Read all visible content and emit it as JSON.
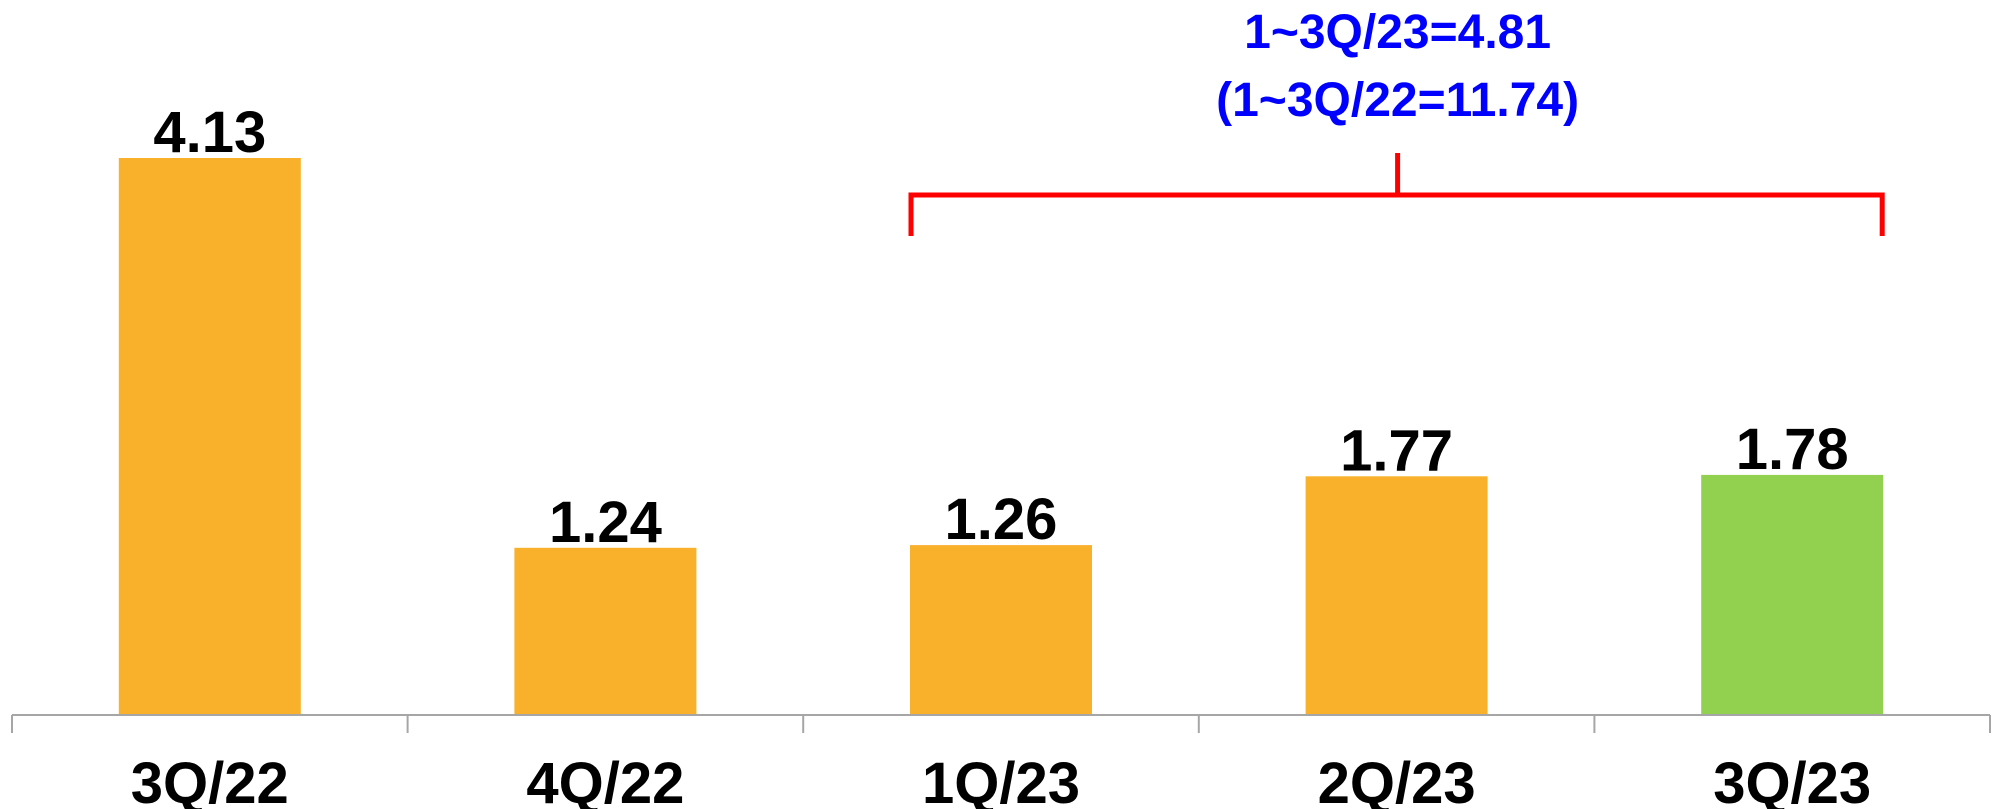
{
  "chart_data": {
    "type": "bar",
    "categories": [
      "3Q/22",
      "4Q/22",
      "1Q/23",
      "2Q/23",
      "3Q/23"
    ],
    "values": [
      4.13,
      1.24,
      1.26,
      1.77,
      1.78
    ],
    "value_labels": [
      "4.13",
      "1.24",
      "1.26",
      "1.77",
      "1.78"
    ],
    "bar_colors": [
      "#F9B12B",
      "#F9B12B",
      "#F9B12B",
      "#F9B12B",
      "#92D050"
    ],
    "title": "",
    "xlabel": "",
    "ylabel": "",
    "ylim": [
      0,
      4.13
    ],
    "grid": false,
    "annotation": {
      "line1": "1~3Q/23=4.81",
      "line2": "(1~3Q/22=11.74)",
      "text_color": "#0000FF",
      "bracket_color": "#FF0000",
      "bracket_from_category": "1Q/23",
      "bracket_to_category": "3Q/23"
    },
    "axis_color": "#A6A6A6"
  }
}
